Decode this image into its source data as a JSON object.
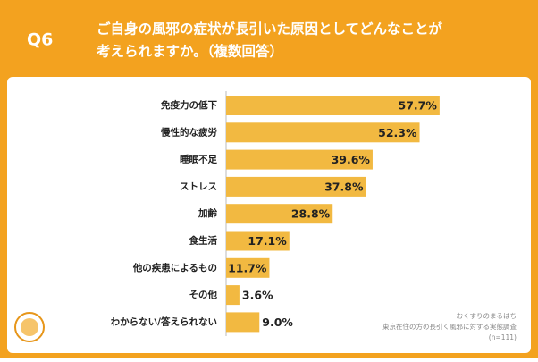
{
  "chart_data": {
    "type": "bar",
    "orientation": "horizontal",
    "question_number": "Q6",
    "title": [
      "ご自身の風邪の症状が長引いた原因としてどんなことが",
      "考えられますか。（複数回答）"
    ],
    "categories": [
      "免疫力の低下",
      "慢性的な疲労",
      "睡眠不足",
      "ストレス",
      "加齢",
      "食生活",
      "他の疾患によるもの",
      "その他",
      "わからない/答えられない"
    ],
    "values": [
      57.7,
      52.3,
      39.6,
      37.8,
      28.8,
      17.1,
      11.7,
      3.6,
      9.0
    ],
    "value_labels": [
      "57.7%",
      "52.3%",
      "39.6%",
      "37.8%",
      "28.8%",
      "17.1%",
      "11.7%",
      "3.6%",
      "9.0%"
    ],
    "color": "#f2b941",
    "source": [
      "おくすりのまるはち",
      "東京在住の方の長引く風邪に対する実態調査",
      "(n=111)"
    ]
  }
}
